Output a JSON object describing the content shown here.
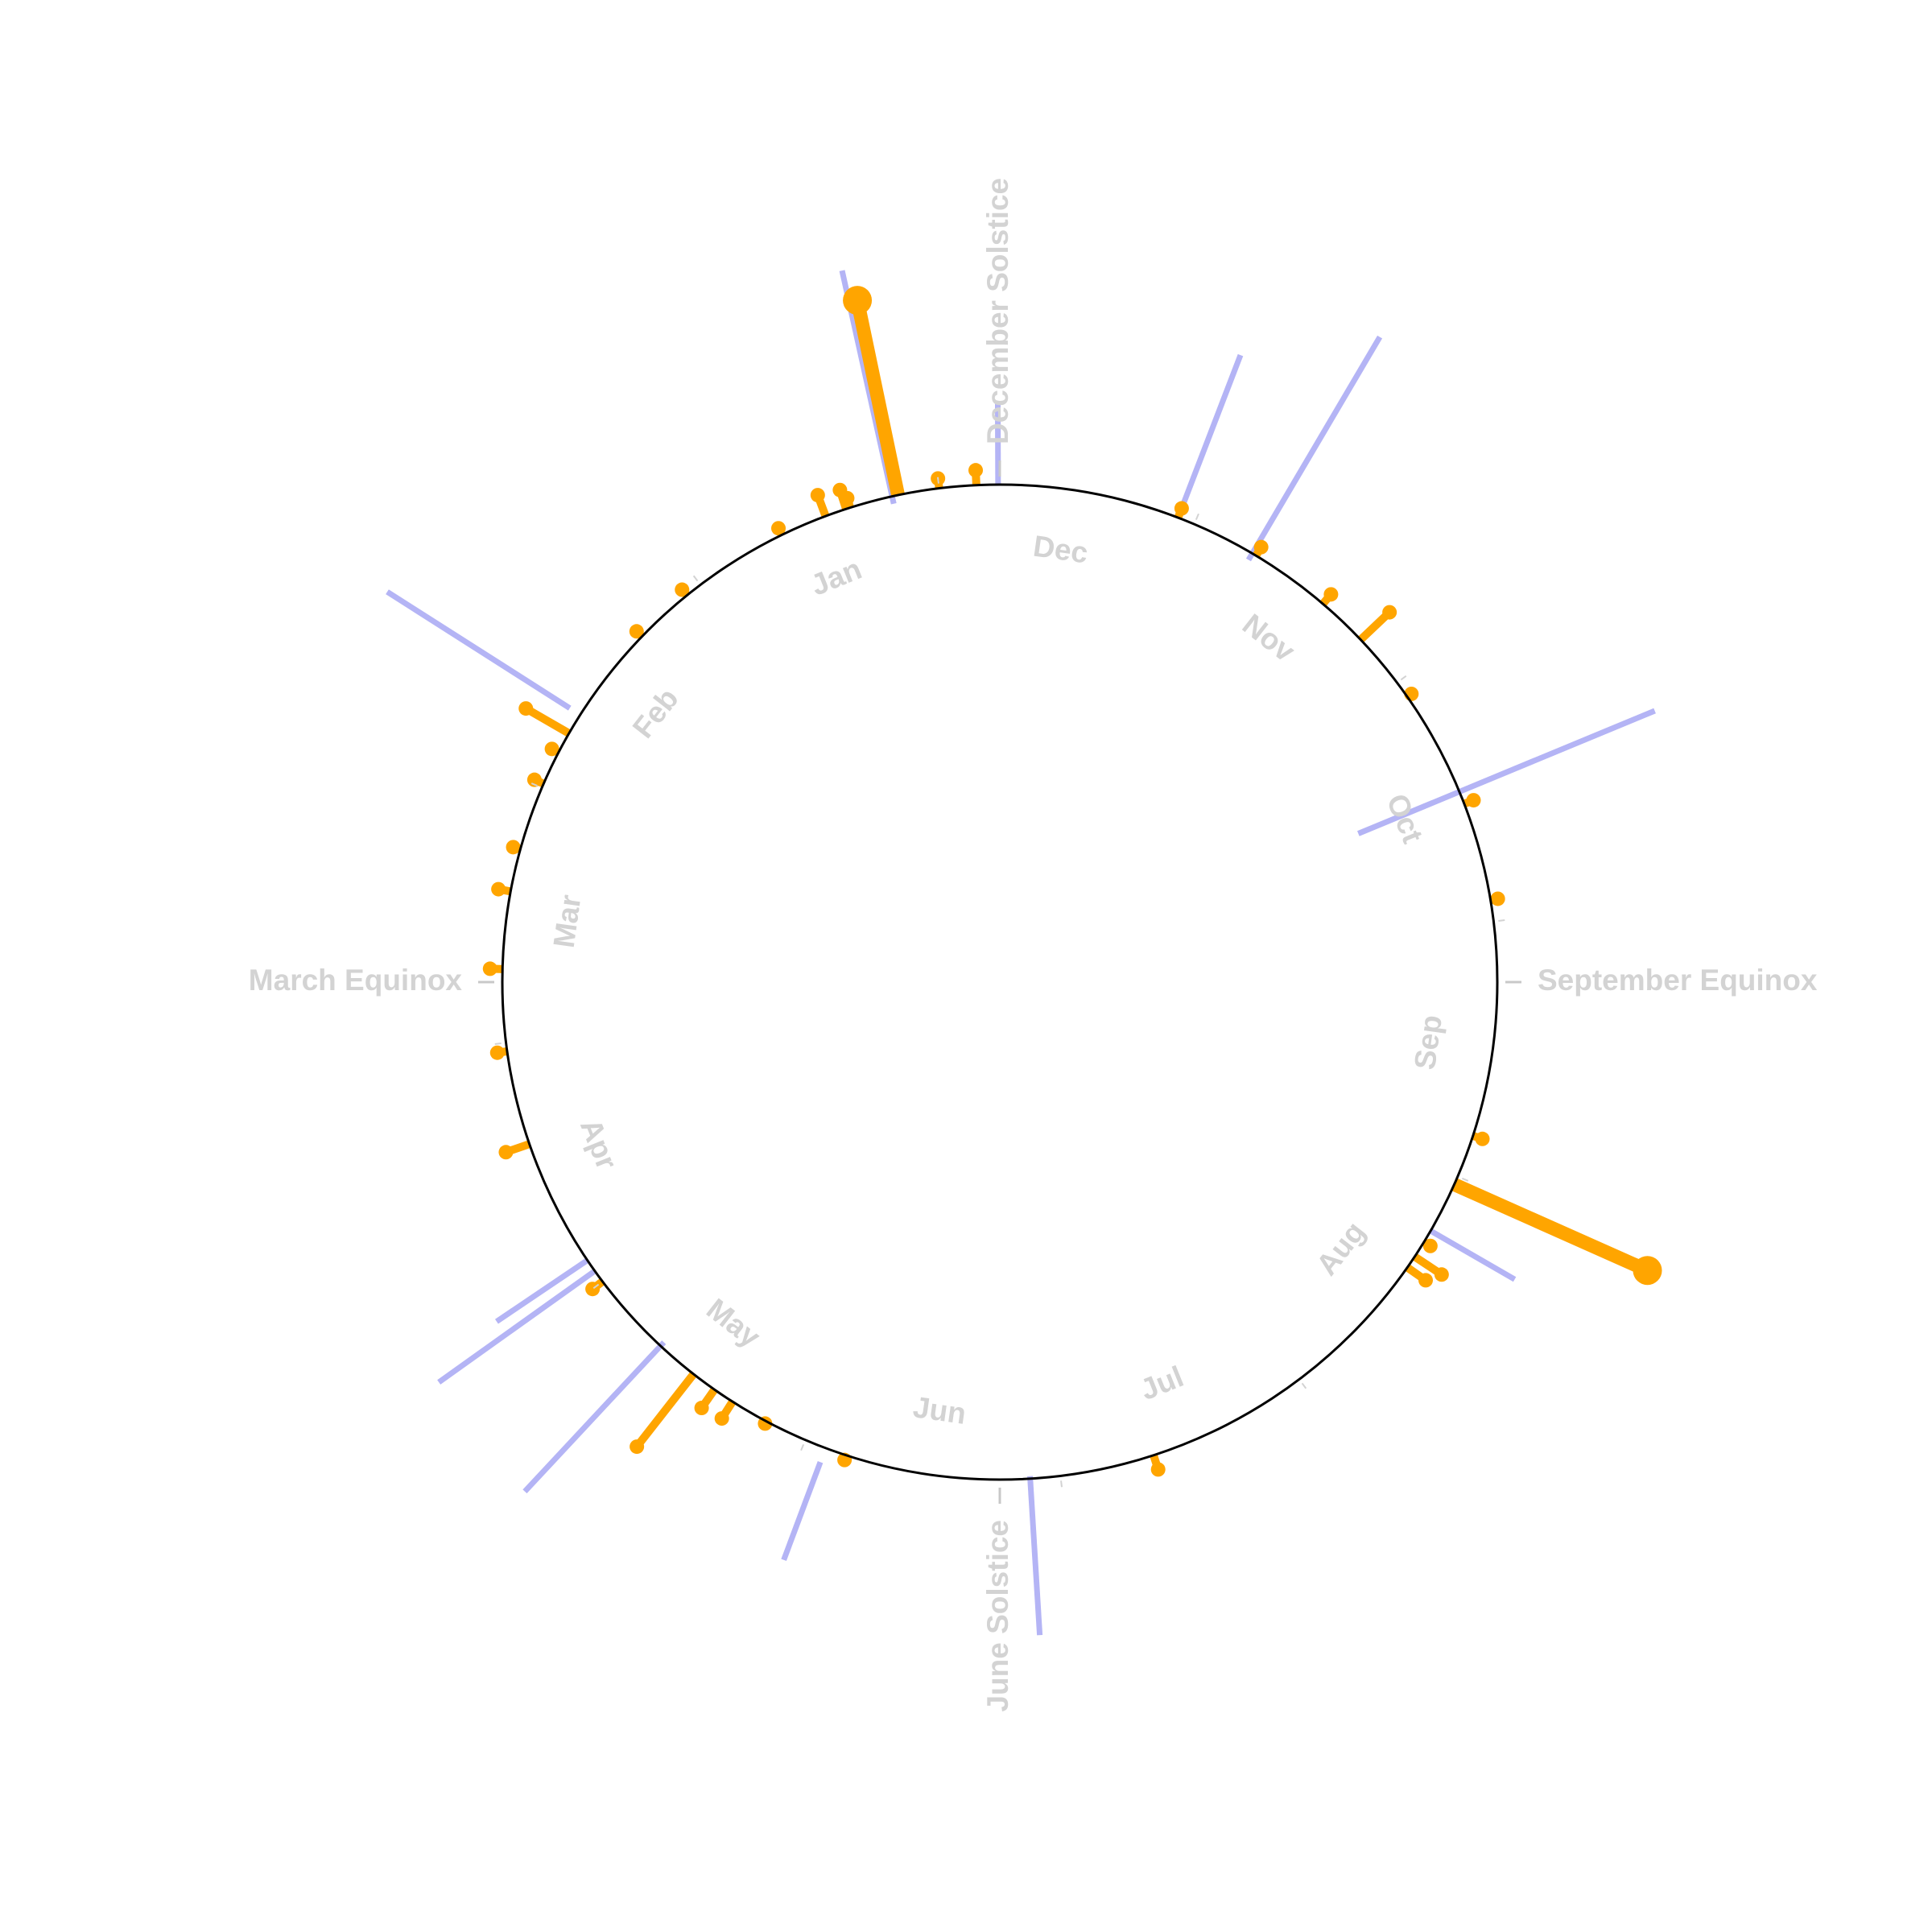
{
  "chart_data": {
    "type": "radial-lollipop",
    "start_angle_label": "December Solstice",
    "direction": "counterclockwise",
    "months": [
      "Jan",
      "Feb",
      "Mar",
      "Apr",
      "May",
      "Jun",
      "Jul",
      "Aug",
      "Sep",
      "Oct",
      "Nov",
      "Dec"
    ],
    "seasons": [
      {
        "label": "December Solstice",
        "angle": 0
      },
      {
        "label": "March Equinox",
        "angle": 90
      },
      {
        "label": "June Solstice",
        "angle": 180
      },
      {
        "label": "September Equinox",
        "angle": 270
      }
    ],
    "colors": {
      "events": "#ffa500",
      "blue": "#b4b4f5",
      "circle": "#000000",
      "labels": "#d3d3d3"
    },
    "orange_events": [
      {
        "angle": 2.7,
        "length": 0.03,
        "size": "small"
      },
      {
        "angle": 7.0,
        "length": 0.02,
        "size": "small"
      },
      {
        "angle": 11.8,
        "length": 0.4,
        "size": "large"
      },
      {
        "angle": 17.5,
        "length": 0.02,
        "size": "small"
      },
      {
        "angle": 18.0,
        "length": 0.04,
        "size": "small"
      },
      {
        "angle": 20.5,
        "length": 0.045,
        "size": "small"
      },
      {
        "angle": 26.0,
        "length": 0.015,
        "size": "small"
      },
      {
        "angle": 39.0,
        "length": 0.015,
        "size": "small"
      },
      {
        "angle": 46.0,
        "length": 0.015,
        "size": "small"
      },
      {
        "angle": 60.0,
        "length": 0.1,
        "size": "small"
      },
      {
        "angle": 62.5,
        "length": 0.015,
        "size": "small"
      },
      {
        "angle": 66.5,
        "length": 0.02,
        "size": "small"
      },
      {
        "angle": 74.5,
        "length": 0.015,
        "size": "small"
      },
      {
        "angle": 79.5,
        "length": 0.025,
        "size": "small"
      },
      {
        "angle": 88.5,
        "length": 0.025,
        "size": "small"
      },
      {
        "angle": 98.0,
        "length": 0.02,
        "size": "small"
      },
      {
        "angle": 109.0,
        "length": 0.05,
        "size": "small"
      },
      {
        "angle": 127.0,
        "length": 0.025,
        "size": "small"
      },
      {
        "angle": 142.0,
        "length": 0.185,
        "size": "small"
      },
      {
        "angle": 145.0,
        "length": 0.045,
        "size": "small"
      },
      {
        "angle": 147.5,
        "length": 0.04,
        "size": "small"
      },
      {
        "angle": 152.0,
        "length": 0.005,
        "size": "small"
      },
      {
        "angle": 162.0,
        "length": 0.01,
        "size": "small"
      },
      {
        "angle": 198.0,
        "length": 0.03,
        "size": "small"
      },
      {
        "angle": 235.0,
        "length": 0.045,
        "size": "small"
      },
      {
        "angle": 236.5,
        "length": 0.065,
        "size": "small"
      },
      {
        "angle": 238.5,
        "length": 0.015,
        "size": "small"
      },
      {
        "angle": 246.0,
        "length": 0.425,
        "size": "large"
      },
      {
        "angle": 252.0,
        "length": 0.02,
        "size": "small"
      },
      {
        "angle": 279.5,
        "length": 0.015,
        "size": "small"
      },
      {
        "angle": 291.0,
        "length": 0.02,
        "size": "small"
      },
      {
        "angle": 305.0,
        "length": 0.01,
        "size": "small"
      },
      {
        "angle": 313.5,
        "length": 0.08,
        "size": "small"
      },
      {
        "angle": 319.5,
        "length": 0.025,
        "size": "small"
      },
      {
        "angle": 329.0,
        "length": 0.02,
        "size": "small"
      },
      {
        "angle": 339.0,
        "length": 0.02,
        "size": "small"
      }
    ],
    "blue_lines": [
      {
        "angle": 0.2,
        "r_inner": 1.0,
        "r_outer": 1.165
      },
      {
        "angle": 12.5,
        "r_inner": 0.985,
        "r_outer": 1.465
      },
      {
        "angle": 57.5,
        "r_inner": 1.025,
        "r_outer": 1.46
      },
      {
        "angle": 124.0,
        "r_inner": 1.0,
        "r_outer": 1.22
      },
      {
        "angle": 125.5,
        "r_inner": 1.0,
        "r_outer": 1.385
      },
      {
        "angle": 137.0,
        "r_inner": 0.99,
        "r_outer": 1.4
      },
      {
        "angle": 159.5,
        "r_inner": 1.03,
        "r_outer": 1.24
      },
      {
        "angle": 183.5,
        "r_inner": 0.995,
        "r_outer": 1.315
      },
      {
        "angle": 292.5,
        "r_inner": 0.78,
        "r_outer": 1.425
      },
      {
        "angle": 240.0,
        "r_inner": 1.0,
        "r_outer": 1.195
      },
      {
        "angle": 329.5,
        "r_inner": 0.985,
        "r_outer": 1.505
      },
      {
        "angle": 339.0,
        "r_inner": 1.015,
        "r_outer": 1.35
      }
    ]
  }
}
